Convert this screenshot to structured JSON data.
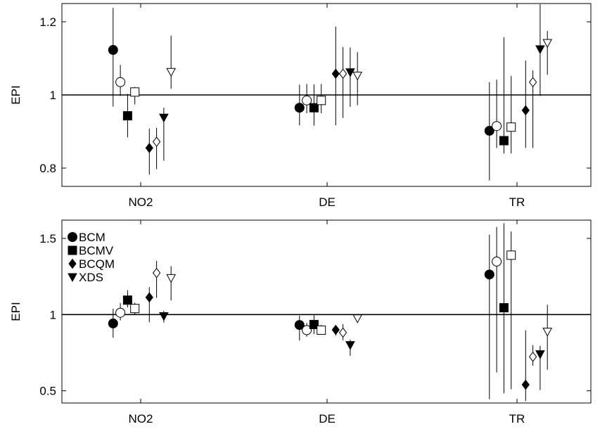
{
  "chart_data": [
    {
      "type": "scatter",
      "ylabel": "EPI",
      "xlabel": "",
      "categories": [
        "NO2",
        "DE",
        "TR"
      ],
      "ylim": [
        0.75,
        1.25
      ],
      "yticks": [
        0.8,
        1,
        1.2
      ],
      "ytick_labels": [
        "0.8",
        "1",
        "1.2"
      ],
      "reference_line": 1,
      "legend": null,
      "series": [
        {
          "name": "BCM",
          "marker": "circle",
          "fill": "filled",
          "values": [
            1.123,
            0.965,
            0.902
          ],
          "lower": [
            0.968,
            0.917,
            0.766
          ],
          "upper": [
            1.238,
            1.028,
            1.035
          ]
        },
        {
          "name": "",
          "marker": "circle",
          "fill": "open",
          "values": [
            1.035,
            0.985,
            0.915
          ],
          "lower": [
            0.997,
            0.95,
            0.855
          ],
          "upper": [
            1.082,
            1.03,
            1.042
          ]
        },
        {
          "name": "BCMV",
          "marker": "square",
          "fill": "filled",
          "values": [
            0.943,
            0.965,
            0.875
          ],
          "lower": [
            0.884,
            0.916,
            0.84
          ],
          "upper": [
            1.003,
            1.029,
            1.158
          ]
        },
        {
          "name": "",
          "marker": "square",
          "fill": "open",
          "values": [
            1.008,
            0.985,
            0.912
          ],
          "lower": [
            0.974,
            0.95,
            0.84
          ],
          "upper": [
            1.022,
            1.03,
            1.052
          ]
        },
        {
          "name": "BCQM",
          "marker": "diamond",
          "fill": "filled",
          "values": [
            0.855,
            1.058,
            0.958
          ],
          "lower": [
            0.782,
            0.917,
            0.855
          ],
          "upper": [
            0.908,
            1.187,
            1.094
          ]
        },
        {
          "name": "",
          "marker": "diamond",
          "fill": "open",
          "values": [
            0.872,
            1.058,
            1.035
          ],
          "lower": [
            0.797,
            0.937,
            0.855
          ],
          "upper": [
            0.91,
            1.131,
            1.067
          ]
        },
        {
          "name": "XDS",
          "marker": "triangle-down",
          "fill": "filled",
          "values": [
            0.938,
            1.062,
            1.125
          ],
          "lower": [
            0.82,
            0.967,
            0.997
          ],
          "upper": [
            0.965,
            1.13,
            1.248
          ]
        },
        {
          "name": "",
          "marker": "triangle-down",
          "fill": "open",
          "values": [
            1.063,
            1.053,
            1.142
          ],
          "lower": [
            1.017,
            0.972,
            1.055
          ],
          "upper": [
            1.162,
            1.117,
            1.175
          ]
        }
      ]
    },
    {
      "type": "scatter",
      "ylabel": "EPI",
      "xlabel": "",
      "categories": [
        "NO2",
        "DE",
        "TR"
      ],
      "ylim": [
        0.42,
        1.62
      ],
      "yticks": [
        0.5,
        1,
        1.5
      ],
      "ytick_labels": [
        "0.5",
        "1",
        "1.5"
      ],
      "reference_line": 1,
      "legend": {
        "position": "top-left",
        "entries": [
          {
            "label": "BCM",
            "marker": "circle"
          },
          {
            "label": "BCMV",
            "marker": "square"
          },
          {
            "label": "BCQM",
            "marker": "diamond"
          },
          {
            "label": "XDS",
            "marker": "triangle-down"
          }
        ]
      },
      "series": [
        {
          "name": "BCM",
          "marker": "circle",
          "fill": "filled",
          "values": [
            0.942,
            0.932,
            1.263
          ],
          "lower": [
            0.848,
            0.83,
            0.445
          ],
          "upper": [
            1.038,
            0.993,
            1.525
          ]
        },
        {
          "name": "",
          "marker": "circle",
          "fill": "open",
          "values": [
            1.012,
            0.898,
            1.348
          ],
          "lower": [
            0.962,
            0.855,
            0.62
          ],
          "upper": [
            1.075,
            0.945,
            1.575
          ]
        },
        {
          "name": "BCMV",
          "marker": "square",
          "fill": "filled",
          "values": [
            1.095,
            0.935,
            1.045
          ],
          "lower": [
            1.047,
            0.872,
            0.483
          ],
          "upper": [
            1.16,
            0.995,
            1.6
          ]
        },
        {
          "name": "",
          "marker": "square",
          "fill": "open",
          "values": [
            1.04,
            0.898,
            1.39
          ],
          "lower": [
            1.0,
            0.87,
            0.51
          ],
          "upper": [
            1.078,
            0.932,
            1.545
          ]
        },
        {
          "name": "BCQM",
          "marker": "diamond",
          "fill": "filled",
          "values": [
            1.113,
            0.9,
            0.54
          ],
          "lower": [
            0.95,
            0.862,
            0.432
          ],
          "upper": [
            1.18,
            0.93,
            0.897
          ]
        },
        {
          "name": "",
          "marker": "diamond",
          "fill": "open",
          "values": [
            1.273,
            0.882,
            0.723
          ],
          "lower": [
            1.11,
            0.832,
            0.665
          ],
          "upper": [
            1.353,
            0.938,
            0.8
          ]
        },
        {
          "name": "XDS",
          "marker": "triangle-down",
          "fill": "filled",
          "values": [
            0.99,
            0.8,
            0.74
          ],
          "lower": [
            0.948,
            0.73,
            0.505
          ],
          "upper": [
            1.025,
            0.835,
            0.795
          ]
        },
        {
          "name": "",
          "marker": "triangle-down",
          "fill": "open",
          "values": [
            1.24,
            0.975,
            0.888
          ],
          "lower": [
            1.093,
            0.958,
            0.638
          ],
          "upper": [
            1.318,
            0.985,
            1.065
          ]
        }
      ]
    }
  ]
}
